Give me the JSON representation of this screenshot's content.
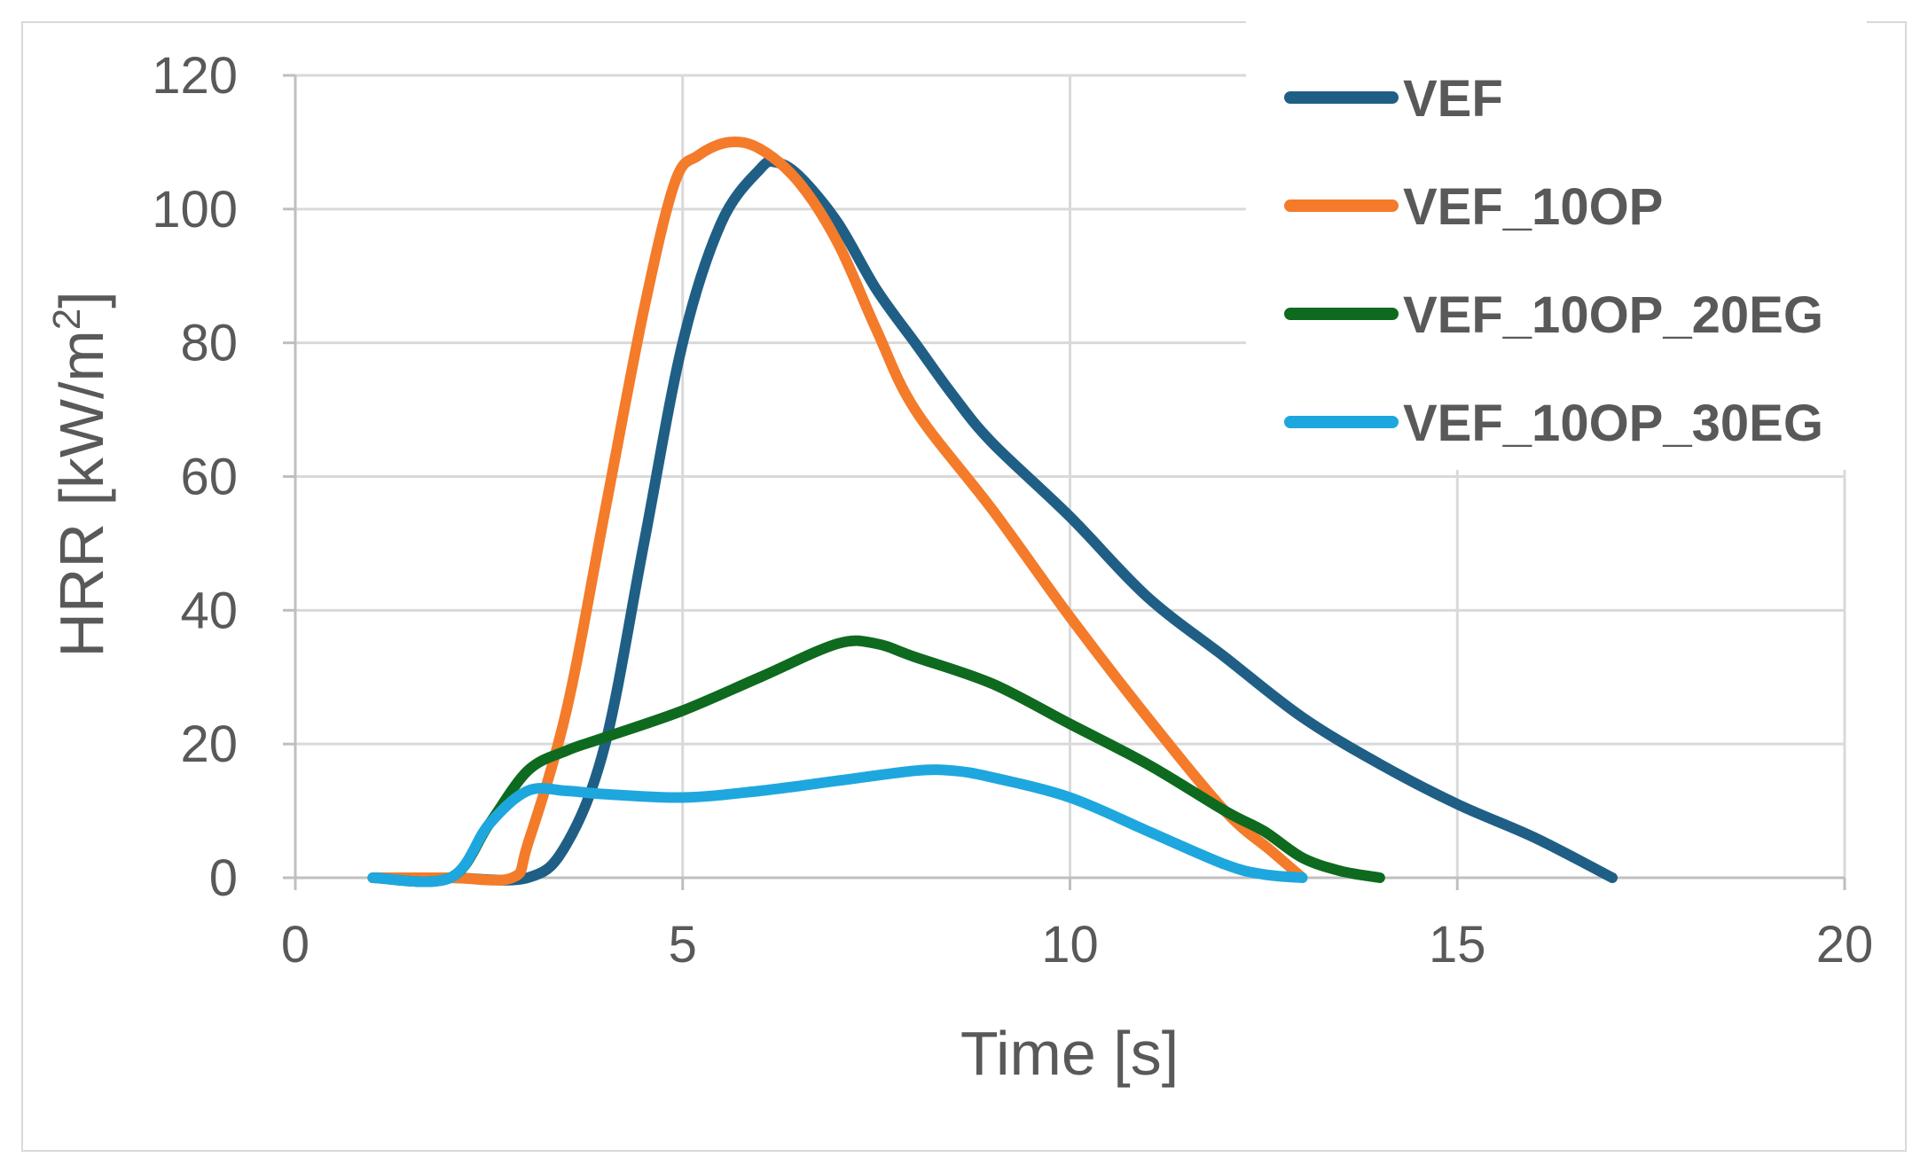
{
  "chart_data": {
    "type": "line",
    "title": "",
    "xlabel": "Time [s]",
    "ylabel": "HRR [kW/m²]",
    "ylabel_main": "HRR [kW/m",
    "ylabel_sup": "2",
    "ylabel_tail": "]",
    "xlim": [
      0,
      20
    ],
    "ylim": [
      0,
      120
    ],
    "xticks": [
      0,
      5,
      10,
      15,
      20
    ],
    "yticks": [
      0,
      20,
      40,
      60,
      80,
      100,
      120
    ],
    "grid": true,
    "legend_position": "top-right",
    "series": [
      {
        "name": "VEF",
        "color": "#1f5f86",
        "x": [
          1,
          2,
          3,
          3.5,
          4,
          4.5,
          5,
          5.5,
          6,
          6.2,
          6.5,
          7,
          7.5,
          8,
          8.5,
          9,
          10,
          11,
          12,
          13,
          14,
          15,
          16,
          17
        ],
        "y": [
          0,
          0,
          0,
          5,
          20,
          50,
          80,
          98,
          106,
          107,
          105,
          98,
          88,
          80,
          72,
          65,
          54,
          42,
          33,
          24,
          17,
          11,
          6,
          0
        ]
      },
      {
        "name": "VEF_10OP",
        "color": "#f47b2a",
        "x": [
          1,
          2,
          2.8,
          3,
          3.5,
          4,
          4.5,
          4.9,
          5.2,
          5.6,
          6,
          6.5,
          7,
          7.5,
          8,
          9,
          10,
          11,
          12,
          12.6,
          13
        ],
        "y": [
          0,
          0,
          0,
          5,
          25,
          55,
          85,
          104,
          108,
          110,
          109,
          104,
          95,
          82,
          70,
          55,
          39,
          24,
          10,
          4,
          0
        ]
      },
      {
        "name": "VEF_10OP_20EG",
        "color": "#0e6a1e",
        "x": [
          1,
          2,
          2.5,
          3,
          3.5,
          4,
          5,
          6,
          7,
          7.5,
          8,
          9,
          10,
          11,
          12,
          12.5,
          13,
          13.5,
          14
        ],
        "y": [
          0,
          0,
          8,
          16,
          19,
          21,
          25,
          30,
          35,
          35,
          33,
          29,
          23,
          17,
          10,
          7,
          3,
          1,
          0
        ]
      },
      {
        "name": "VEF_10OP_30EG",
        "color": "#1ea7de",
        "x": [
          1,
          2,
          2.5,
          3,
          3.5,
          4,
          5,
          6,
          7,
          8,
          8.5,
          9,
          10,
          11,
          12,
          12.5,
          13
        ],
        "y": [
          0,
          0,
          8,
          13,
          13,
          12.5,
          12,
          13,
          14.5,
          16,
          16,
          15,
          12,
          7,
          2,
          0.5,
          0
        ]
      }
    ]
  }
}
